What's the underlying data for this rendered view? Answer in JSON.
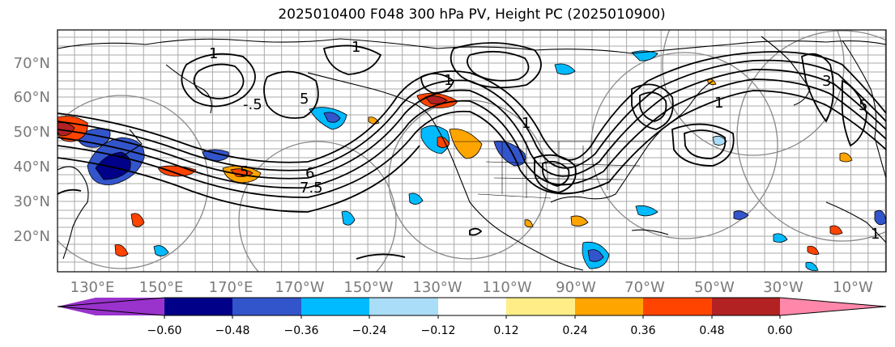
{
  "title": "2025010400 F048 300 hPa PV, Height PC (2025010900)",
  "map": {
    "lat_labels": [
      "70°N",
      "60°N",
      "50°N",
      "40°N",
      "30°N",
      "20°N"
    ],
    "lon_labels": [
      "130°E",
      "150°E",
      "170°E",
      "170°W",
      "150°W",
      "130°W",
      "110°W",
      "90°W",
      "70°W",
      "50°W",
      "30°W",
      "10°W"
    ],
    "contour_labels": [
      "1",
      "1",
      "-.5",
      "5",
      "5",
      "6",
      "7.5",
      "1",
      "1",
      "1",
      "3",
      "5",
      "1"
    ]
  },
  "colorbar": {
    "ticks": [
      "−0.60",
      "−0.48",
      "−0.36",
      "−0.24",
      "−0.12",
      "0.12",
      "0.24",
      "0.36",
      "0.48",
      "0.60"
    ],
    "colors": [
      "#9933cc",
      "#000088",
      "#3355cc",
      "#00bbff",
      "#aaddf7",
      "#ffffff",
      "#ffee88",
      "#ffa500",
      "#ff4400",
      "#b22222",
      "#ff88aa"
    ]
  }
}
